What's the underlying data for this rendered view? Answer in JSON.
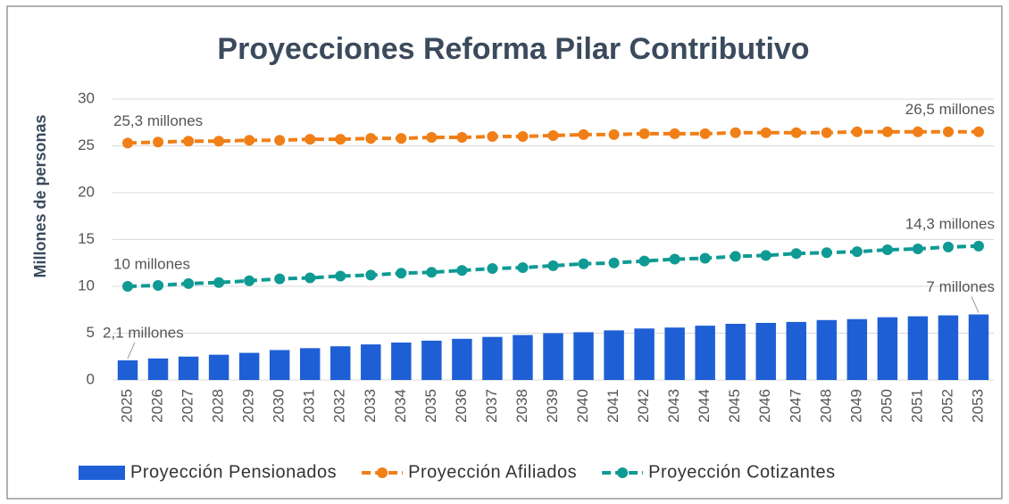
{
  "chart_data": {
    "type": "combo",
    "title": "Proyecciones Reforma Pilar Contributivo",
    "ylabel": "Millones de personas",
    "categories": [
      "2025",
      "2026",
      "2027",
      "2028",
      "2029",
      "2030",
      "2031",
      "2032",
      "2033",
      "2034",
      "2035",
      "2036",
      "2037",
      "2038",
      "2039",
      "2040",
      "2041",
      "2042",
      "2043",
      "2044",
      "2045",
      "2046",
      "2047",
      "2048",
      "2049",
      "2050",
      "2051",
      "2052",
      "2053"
    ],
    "ylim": [
      0,
      30
    ],
    "yticks": [
      0,
      5,
      10,
      15,
      20,
      25,
      30
    ],
    "grid": true,
    "legend": "bottom",
    "series": [
      {
        "name": "Proyección Pensionados",
        "type": "bar",
        "color": "#1f5fd6",
        "values": [
          2.1,
          2.3,
          2.5,
          2.7,
          2.9,
          3.2,
          3.4,
          3.6,
          3.8,
          4.0,
          4.2,
          4.4,
          4.6,
          4.8,
          5.0,
          5.1,
          5.3,
          5.5,
          5.6,
          5.8,
          6.0,
          6.1,
          6.2,
          6.4,
          6.5,
          6.7,
          6.8,
          6.9,
          7.0
        ],
        "value_labels": [
          "2,1 millones",
          null,
          null,
          null,
          null,
          null,
          null,
          null,
          null,
          null,
          null,
          null,
          null,
          null,
          null,
          null,
          null,
          null,
          null,
          null,
          null,
          null,
          null,
          null,
          null,
          null,
          null,
          null,
          "7 millones"
        ]
      },
      {
        "name": "Proyección Afiliados",
        "type": "line",
        "color": "#f07f17",
        "values": [
          25.3,
          25.4,
          25.5,
          25.5,
          25.6,
          25.6,
          25.7,
          25.7,
          25.8,
          25.8,
          25.9,
          25.9,
          26.0,
          26.0,
          26.1,
          26.2,
          26.2,
          26.3,
          26.3,
          26.3,
          26.4,
          26.4,
          26.4,
          26.4,
          26.5,
          26.5,
          26.5,
          26.5,
          26.5
        ],
        "value_labels": [
          "25,3 millones",
          null,
          null,
          null,
          null,
          null,
          null,
          null,
          null,
          null,
          null,
          null,
          null,
          null,
          null,
          null,
          null,
          null,
          null,
          null,
          null,
          null,
          null,
          null,
          null,
          null,
          null,
          null,
          "26,5 millones"
        ]
      },
      {
        "name": "Proyección Cotizantes",
        "type": "line",
        "color": "#0f9a94",
        "values": [
          10.0,
          10.1,
          10.3,
          10.4,
          10.6,
          10.8,
          10.9,
          11.1,
          11.2,
          11.4,
          11.5,
          11.7,
          11.9,
          12.0,
          12.2,
          12.4,
          12.5,
          12.7,
          12.9,
          13.0,
          13.2,
          13.3,
          13.5,
          13.6,
          13.7,
          13.9,
          14.0,
          14.2,
          14.3
        ],
        "value_labels": [
          "10  millones",
          null,
          null,
          null,
          null,
          null,
          null,
          null,
          null,
          null,
          null,
          null,
          null,
          null,
          null,
          null,
          null,
          null,
          null,
          null,
          null,
          null,
          null,
          null,
          null,
          null,
          null,
          null,
          "14,3 millones"
        ]
      }
    ]
  }
}
